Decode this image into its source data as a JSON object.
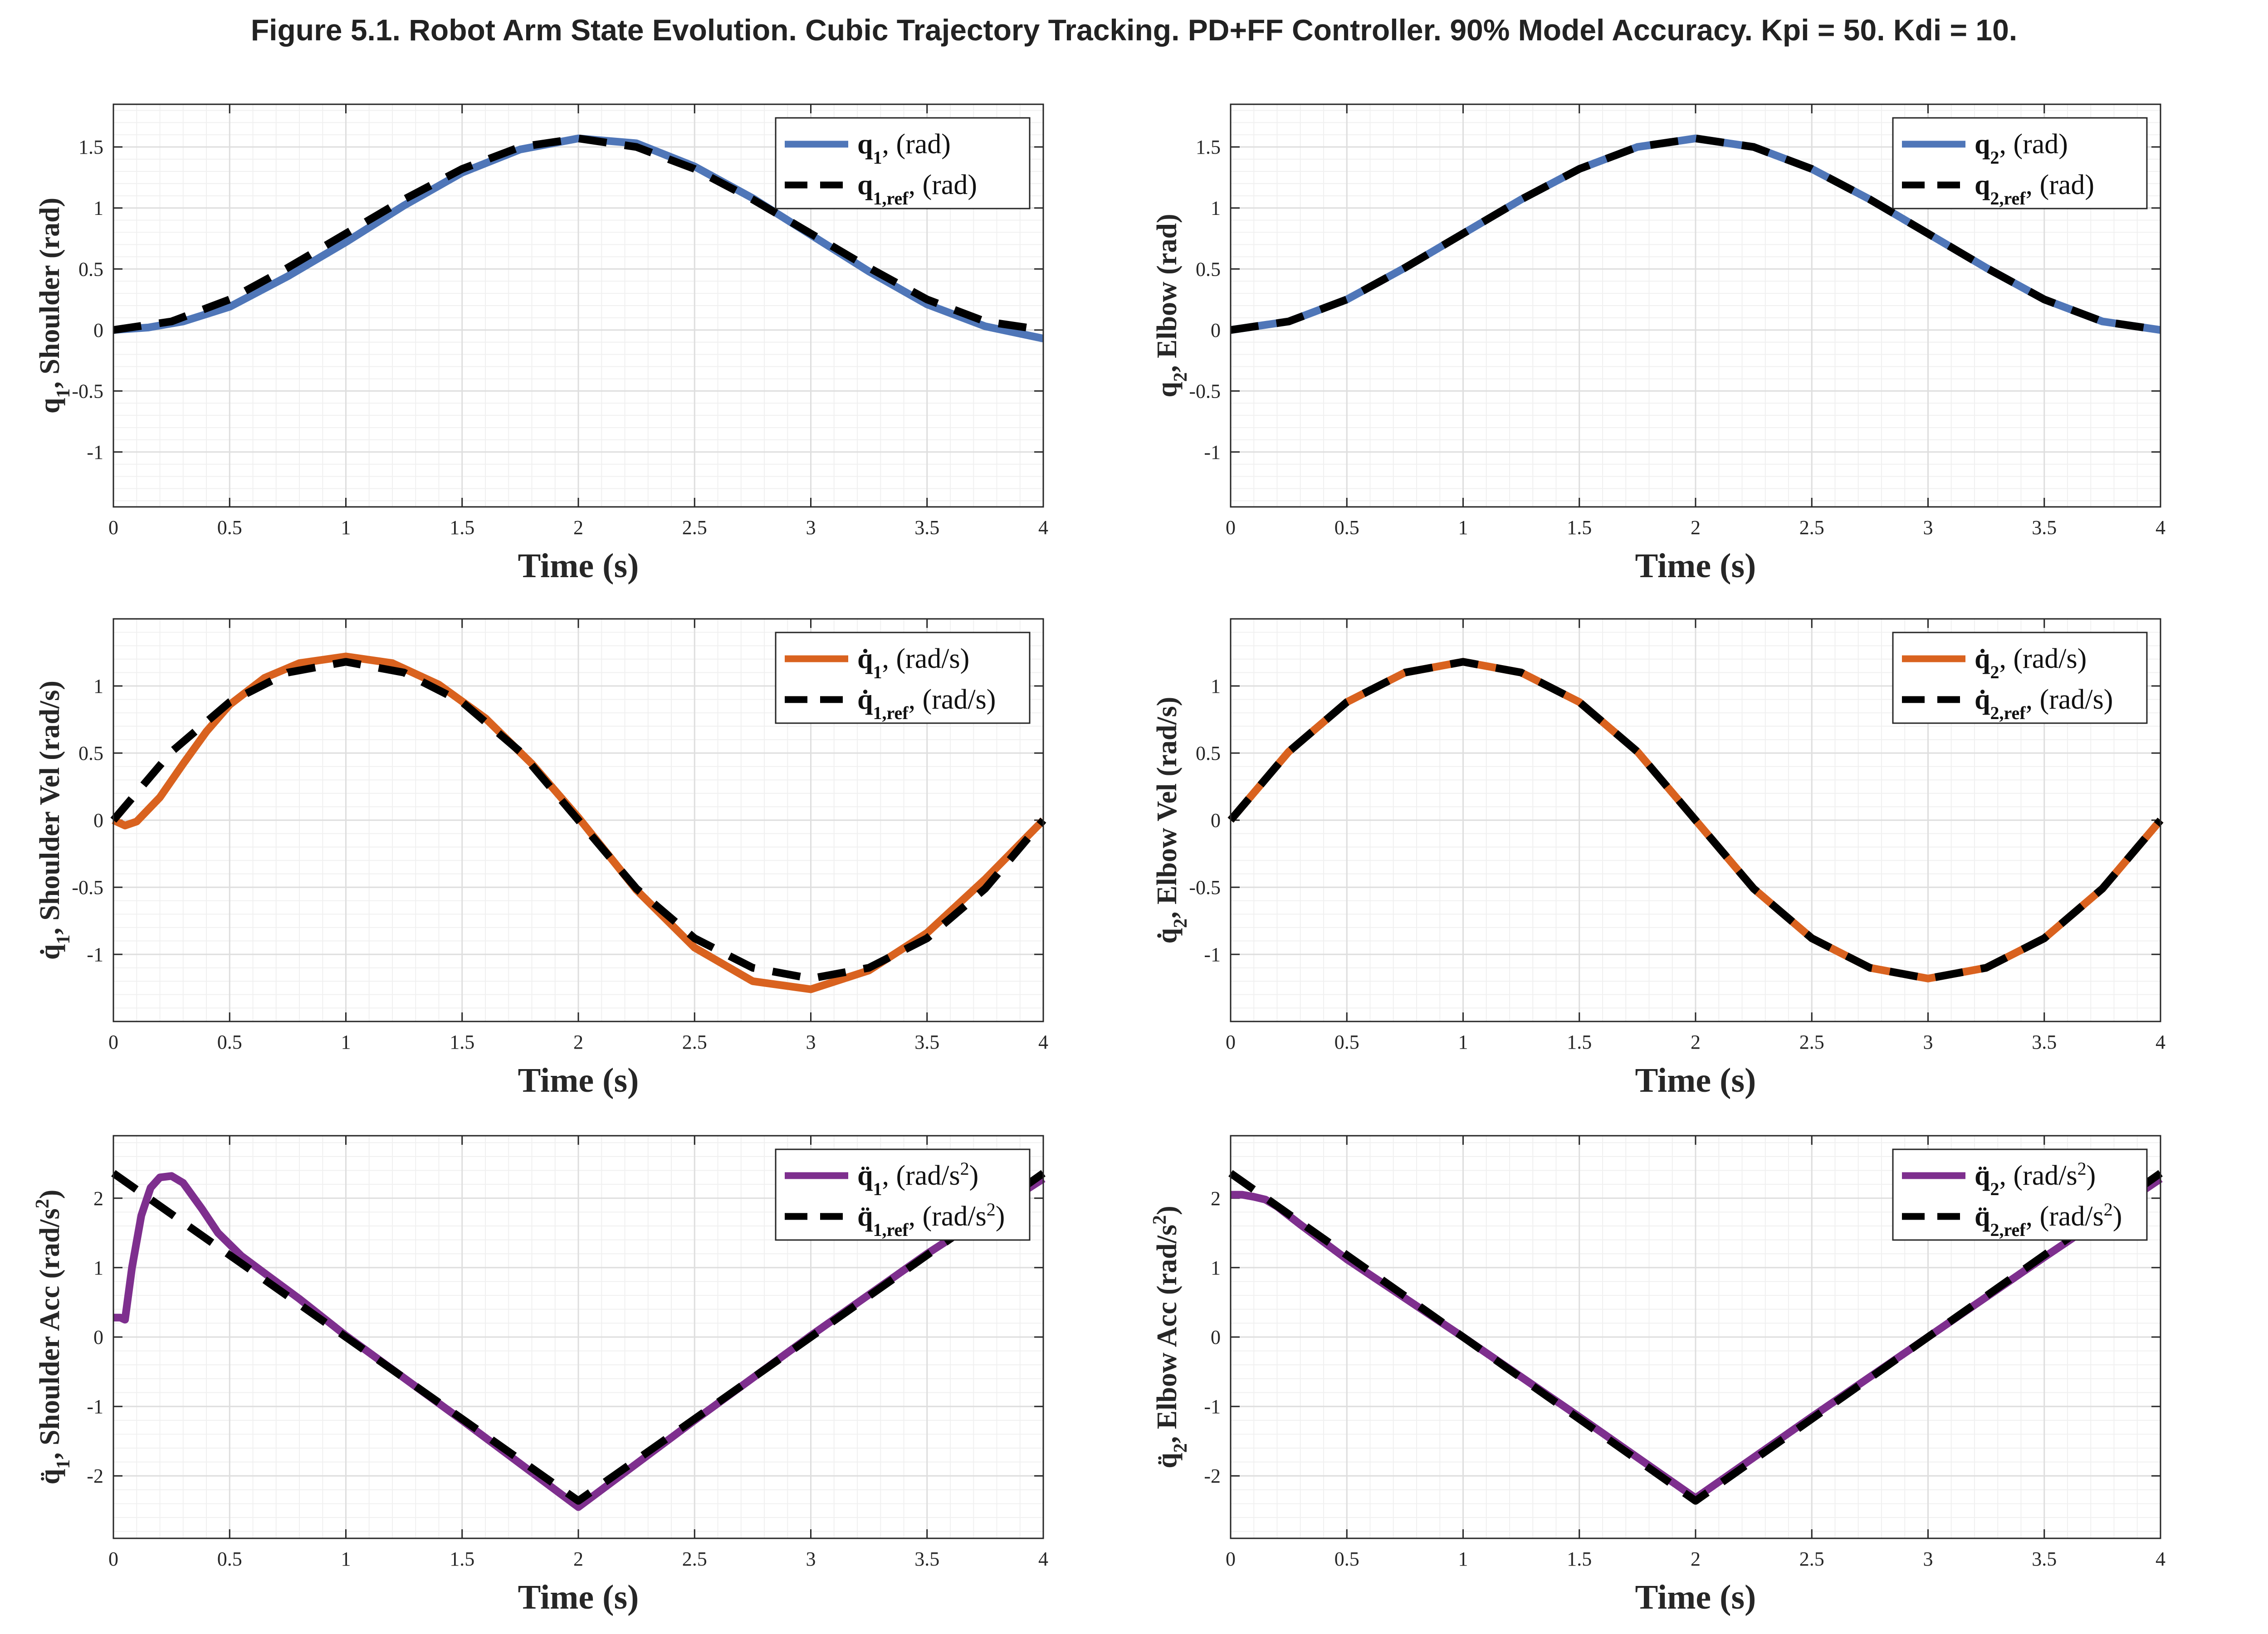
{
  "figure_title": "Figure 5.1. Robot Arm State Evolution. Cubic Trajectory Tracking. PD+FF Controller. 90% Model Accuracy. Kpi = 50. Kdi = 10.",
  "colors": {
    "position": "#4F76B8",
    "velocity": "#D9621F",
    "acceleration": "#7E2F8E",
    "reference": "#000000",
    "grid": "#e6e6e6",
    "axes": "#262626"
  },
  "chart_data": [
    {
      "type": "line",
      "xlabel": "Time (s)",
      "ylabel": {
        "sym": "q",
        "sub": "1",
        "text": ", Shoulder (rad)"
      },
      "xlim": [
        0,
        4
      ],
      "ylim": [
        -1.45,
        1.85
      ],
      "xticks": [
        0,
        0.5,
        1,
        1.5,
        2,
        2.5,
        3,
        3.5,
        4
      ],
      "yticks": [
        -1,
        -0.5,
        0,
        0.5,
        1,
        1.5
      ],
      "grid": true,
      "legend": "top-right",
      "series": [
        {
          "name": "q1, (rad)",
          "sym": "q",
          "sub": "1",
          "unit": ", (rad)",
          "style": "solid",
          "color": "#4F76B8",
          "x": [
            0,
            0.15,
            0.3,
            0.5,
            0.75,
            1.0,
            1.25,
            1.5,
            1.75,
            2.0,
            2.25,
            2.5,
            2.75,
            3.0,
            3.25,
            3.5,
            3.75,
            4.0
          ],
          "y": [
            0,
            0.02,
            0.07,
            0.19,
            0.44,
            0.72,
            1.02,
            1.29,
            1.48,
            1.57,
            1.53,
            1.34,
            1.08,
            0.78,
            0.48,
            0.21,
            0.03,
            -0.07
          ]
        },
        {
          "name": "q1,ref, (rad)",
          "sym": "q",
          "sub": "1,ref",
          "unit": ", (rad)",
          "style": "dash",
          "color": "#000000",
          "x": [
            0,
            0.25,
            0.5,
            0.75,
            1.0,
            1.25,
            1.5,
            1.75,
            2.0,
            2.25,
            2.5,
            2.75,
            3.0,
            3.25,
            3.5,
            3.75,
            4.0
          ],
          "y": [
            0,
            0.07,
            0.25,
            0.51,
            0.79,
            1.07,
            1.32,
            1.5,
            1.57,
            1.5,
            1.32,
            1.07,
            0.79,
            0.51,
            0.25,
            0.07,
            0
          ]
        }
      ]
    },
    {
      "type": "line",
      "xlabel": "Time (s)",
      "ylabel": {
        "sym": "q",
        "sub": "2",
        "text": ", Elbow (rad)"
      },
      "xlim": [
        0,
        4
      ],
      "ylim": [
        -1.45,
        1.85
      ],
      "xticks": [
        0,
        0.5,
        1,
        1.5,
        2,
        2.5,
        3,
        3.5,
        4
      ],
      "yticks": [
        -1,
        -0.5,
        0,
        0.5,
        1,
        1.5
      ],
      "grid": true,
      "legend": "top-right",
      "series": [
        {
          "name": "q2, (rad)",
          "sym": "q",
          "sub": "2",
          "unit": ", (rad)",
          "style": "solid",
          "color": "#4F76B8",
          "x": [
            0,
            0.25,
            0.5,
            0.75,
            1.0,
            1.25,
            1.5,
            1.75,
            2.0,
            2.25,
            2.5,
            2.75,
            3.0,
            3.25,
            3.5,
            3.75,
            4.0
          ],
          "y": [
            0,
            0.07,
            0.25,
            0.51,
            0.79,
            1.07,
            1.32,
            1.5,
            1.57,
            1.5,
            1.32,
            1.07,
            0.79,
            0.51,
            0.25,
            0.07,
            0
          ]
        },
        {
          "name": "q2,ref, (rad)",
          "sym": "q",
          "sub": "2,ref",
          "unit": ", (rad)",
          "style": "dash",
          "color": "#000000",
          "x": [
            0,
            0.25,
            0.5,
            0.75,
            1.0,
            1.25,
            1.5,
            1.75,
            2.0,
            2.25,
            2.5,
            2.75,
            3.0,
            3.25,
            3.5,
            3.75,
            4.0
          ],
          "y": [
            0,
            0.07,
            0.25,
            0.51,
            0.79,
            1.07,
            1.32,
            1.5,
            1.57,
            1.5,
            1.32,
            1.07,
            0.79,
            0.51,
            0.25,
            0.07,
            0
          ]
        }
      ]
    },
    {
      "type": "line",
      "xlabel": "Time (s)",
      "ylabel": {
        "sym": "q̇",
        "sub": "1",
        "text": ", Shoulder Vel (rad/s)"
      },
      "xlim": [
        0,
        4
      ],
      "ylim": [
        -1.5,
        1.5
      ],
      "xticks": [
        0,
        0.5,
        1,
        1.5,
        2,
        2.5,
        3,
        3.5,
        4
      ],
      "yticks": [
        -1,
        -0.5,
        0,
        0.5,
        1
      ],
      "grid": true,
      "legend": "top-right",
      "series": [
        {
          "name": "q̇1, (rad/s)",
          "sym": "q̇",
          "sub": "1",
          "unit": ", (rad/s)",
          "style": "solid",
          "color": "#D9621F",
          "x": [
            0,
            0.05,
            0.1,
            0.2,
            0.3,
            0.4,
            0.5,
            0.65,
            0.8,
            1.0,
            1.2,
            1.4,
            1.6,
            1.8,
            2.0,
            2.25,
            2.5,
            2.75,
            3.0,
            3.25,
            3.5,
            3.75,
            4.0
          ],
          "y": [
            0,
            -0.04,
            -0.01,
            0.17,
            0.42,
            0.66,
            0.86,
            1.06,
            1.17,
            1.22,
            1.17,
            1.01,
            0.76,
            0.42,
            0.02,
            -0.52,
            -0.95,
            -1.2,
            -1.26,
            -1.12,
            -0.84,
            -0.44,
            0
          ]
        },
        {
          "name": "q̇1,ref, (rad/s)",
          "sym": "q̇",
          "sub": "1,ref",
          "unit": ", (rad/s)",
          "style": "dash",
          "color": "#000000",
          "x": [
            0,
            0.25,
            0.5,
            0.75,
            1.0,
            1.25,
            1.5,
            1.75,
            2.0,
            2.25,
            2.5,
            2.75,
            3.0,
            3.25,
            3.5,
            3.75,
            4.0
          ],
          "y": [
            0,
            0.51,
            0.88,
            1.1,
            1.18,
            1.1,
            0.88,
            0.51,
            0,
            -0.51,
            -0.88,
            -1.1,
            -1.18,
            -1.1,
            -0.88,
            -0.51,
            0
          ]
        }
      ]
    },
    {
      "type": "line",
      "xlabel": "Time (s)",
      "ylabel": {
        "sym": "q̇",
        "sub": "2",
        "text": ", Elbow Vel (rad/s)"
      },
      "xlim": [
        0,
        4
      ],
      "ylim": [
        -1.5,
        1.5
      ],
      "xticks": [
        0,
        0.5,
        1,
        1.5,
        2,
        2.5,
        3,
        3.5,
        4
      ],
      "yticks": [
        -1,
        -0.5,
        0,
        0.5,
        1
      ],
      "grid": true,
      "legend": "top-right",
      "series": [
        {
          "name": "q̇2, (rad/s)",
          "sym": "q̇",
          "sub": "2",
          "unit": ", (rad/s)",
          "style": "solid",
          "color": "#D9621F",
          "x": [
            0,
            0.25,
            0.5,
            0.75,
            1.0,
            1.25,
            1.5,
            1.75,
            2.0,
            2.25,
            2.5,
            2.75,
            3.0,
            3.25,
            3.5,
            3.75,
            4.0
          ],
          "y": [
            0,
            0.51,
            0.88,
            1.1,
            1.18,
            1.1,
            0.88,
            0.51,
            0,
            -0.51,
            -0.88,
            -1.1,
            -1.18,
            -1.1,
            -0.88,
            -0.51,
            0
          ]
        },
        {
          "name": "q̇2,ref, (rad/s)",
          "sym": "q̇",
          "sub": "2,ref",
          "unit": ", (rad/s)",
          "style": "dash",
          "color": "#000000",
          "x": [
            0,
            0.25,
            0.5,
            0.75,
            1.0,
            1.25,
            1.5,
            1.75,
            2.0,
            2.25,
            2.5,
            2.75,
            3.0,
            3.25,
            3.5,
            3.75,
            4.0
          ],
          "y": [
            0,
            0.51,
            0.88,
            1.1,
            1.18,
            1.1,
            0.88,
            0.51,
            0,
            -0.51,
            -0.88,
            -1.1,
            -1.18,
            -1.1,
            -0.88,
            -0.51,
            0
          ]
        }
      ]
    },
    {
      "type": "line",
      "xlabel": "Time (s)",
      "ylabel": {
        "sym": "q̈",
        "sub": "1",
        "text": ", Shoulder Acc (rad/s",
        "sup": "2",
        "end": ")"
      },
      "xlim": [
        0,
        4
      ],
      "ylim": [
        -2.9,
        2.9
      ],
      "xticks": [
        0,
        0.5,
        1,
        1.5,
        2,
        2.5,
        3,
        3.5,
        4
      ],
      "yticks": [
        -2,
        -1,
        0,
        1,
        2
      ],
      "grid": true,
      "legend": "top-right",
      "series": [
        {
          "name": "q̈1, (rad/s2)",
          "sym": "q̈",
          "sub": "1",
          "unit": ", (rad/s",
          "unit_sup": "2",
          "unit_end": ")",
          "style": "solid",
          "color": "#7E2F8E",
          "x": [
            0,
            0.03,
            0.05,
            0.08,
            0.12,
            0.16,
            0.2,
            0.25,
            0.3,
            0.38,
            0.45,
            0.55,
            0.65,
            0.8,
            1.0,
            1.5,
            2.0,
            2.5,
            3.0,
            3.5,
            4.0
          ],
          "y": [
            0.28,
            0.28,
            0.25,
            1.0,
            1.75,
            2.15,
            2.3,
            2.32,
            2.22,
            1.85,
            1.5,
            1.17,
            0.92,
            0.55,
            0.02,
            -1.2,
            -2.45,
            -1.2,
            0.02,
            1.2,
            2.28
          ]
        },
        {
          "name": "q̈1,ref, (rad/s2)",
          "sym": "q̈",
          "sub": "1,ref",
          "unit": ", (rad/s",
          "unit_sup": "2",
          "unit_end": ")",
          "style": "dash",
          "color": "#000000",
          "x": [
            0,
            2.0,
            4.0
          ],
          "y": [
            2.36,
            -2.36,
            2.36
          ]
        }
      ]
    },
    {
      "type": "line",
      "xlabel": "Time (s)",
      "ylabel": {
        "sym": "q̈",
        "sub": "2",
        "text": ", Elbow Acc (rad/s",
        "sup": "2",
        "end": ")"
      },
      "xlim": [
        0,
        4
      ],
      "ylim": [
        -2.9,
        2.9
      ],
      "xticks": [
        0,
        0.5,
        1,
        1.5,
        2,
        2.5,
        3,
        3.5,
        4
      ],
      "yticks": [
        -2,
        -1,
        0,
        1,
        2
      ],
      "grid": true,
      "legend": "top-right",
      "series": [
        {
          "name": "q̈2, (rad/s2)",
          "sym": "q̈",
          "sub": "2",
          "unit": ", (rad/s",
          "unit_sup": "2",
          "unit_end": ")",
          "style": "solid",
          "color": "#7E2F8E",
          "x": [
            0,
            0.05,
            0.1,
            0.15,
            0.2,
            0.3,
            0.5,
            1.0,
            1.5,
            2.0,
            2.5,
            3.0,
            3.5,
            4.0
          ],
          "y": [
            2.05,
            2.05,
            2.02,
            1.98,
            1.88,
            1.62,
            1.12,
            0,
            -1.15,
            -2.32,
            -1.15,
            0,
            1.15,
            2.28
          ]
        },
        {
          "name": "q̈2,ref, (rad/s2)",
          "sym": "q̈",
          "sub": "2,ref",
          "unit": ", (rad/s",
          "unit_sup": "2",
          "unit_end": ")",
          "style": "dash",
          "color": "#000000",
          "x": [
            0,
            2.0,
            4.0
          ],
          "y": [
            2.36,
            -2.36,
            2.36
          ]
        }
      ]
    }
  ]
}
